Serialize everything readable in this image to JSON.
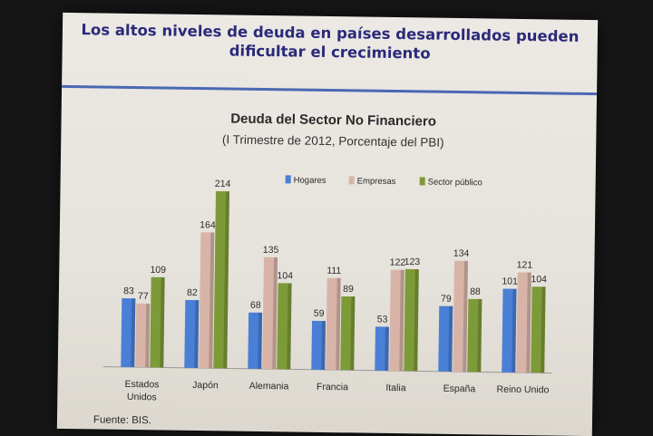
{
  "slide": {
    "title": "Los altos niveles de deuda en países desarrollados pueden dificultar el crecimiento",
    "source": "Fuente: BIS."
  },
  "chart_data": {
    "type": "bar",
    "title": "Deuda del Sector No Financiero",
    "subtitle": "(I Trimestre de 2012, Porcentaje del PBI)",
    "xlabel": "",
    "ylabel": "",
    "ylim": [
      0,
      230
    ],
    "grid": false,
    "legend_position": "top",
    "categories": [
      "Estados Unidos",
      "Japón",
      "Alemania",
      "Francia",
      "Italia",
      "España",
      "Reino Unido"
    ],
    "series": [
      {
        "name": "Hogares",
        "color": "#4a7fd6",
        "values": [
          83,
          82,
          68,
          59,
          53,
          79,
          101
        ]
      },
      {
        "name": "Empresas",
        "color": "#d8b4a8",
        "values": [
          77,
          164,
          135,
          111,
          122,
          134,
          121
        ]
      },
      {
        "name": "Sector público",
        "color": "#7d9a38",
        "values": [
          109,
          214,
          104,
          89,
          123,
          88,
          104
        ]
      }
    ]
  }
}
